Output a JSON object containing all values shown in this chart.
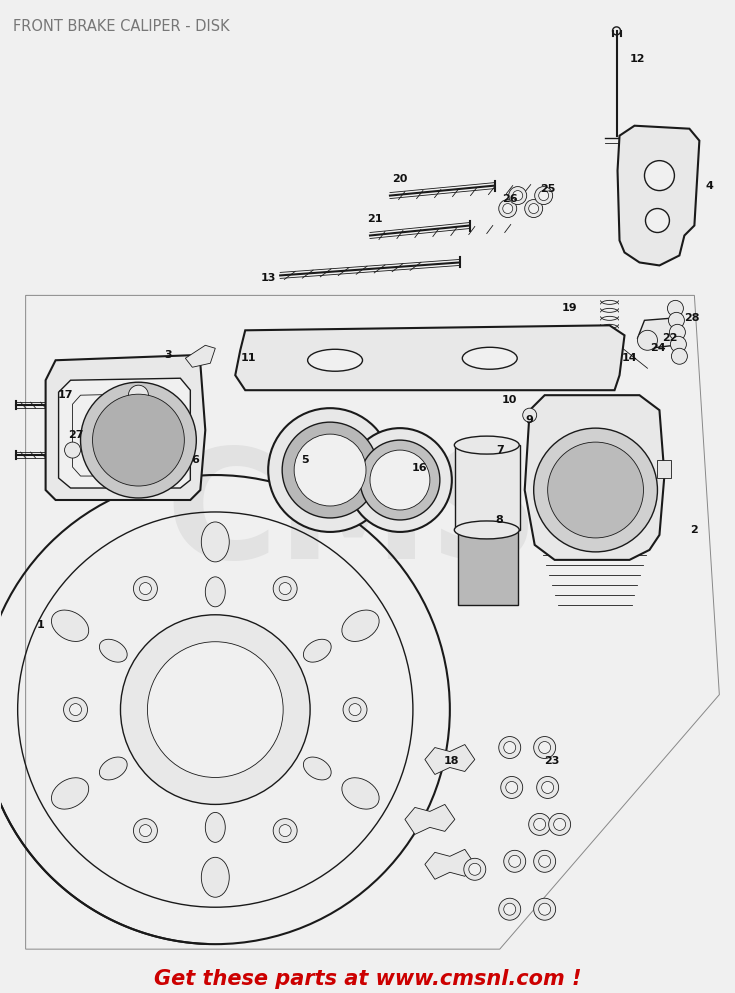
{
  "title": "FRONT BRAKE CALIPER - DISK",
  "title_color": "#777777",
  "title_fontsize": 10.5,
  "bg_color": "#f0f0f0",
  "footer_text": "Get these parts at www.cmsnl.com !",
  "footer_color": "#cc0000",
  "footer_fontsize": 15,
  "fig_width": 7.35,
  "fig_height": 9.93,
  "dpi": 100,
  "line_color": "#1a1a1a",
  "watermark_color": "#d0d0d0"
}
